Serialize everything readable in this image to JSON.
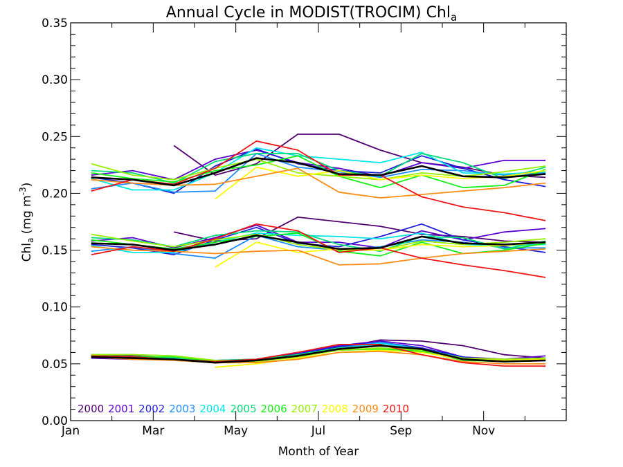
{
  "chart_data": {
    "type": "line",
    "title": "Annual Cycle in MODIST(TROCIM) Chl",
    "title_subscript": "a",
    "xlabel": "Month of Year",
    "ylabel": "Chl",
    "ylabel_subscript": "a",
    "ylabel_unit": " (mg m",
    "ylabel_unit_sup": "-3",
    "ylabel_unit_close": ")",
    "xlim": [
      0,
      12
    ],
    "ylim": [
      0,
      0.35
    ],
    "x_ticks": [
      {
        "value": 0,
        "label": "Jan"
      },
      {
        "value": 2,
        "label": "Mar"
      },
      {
        "value": 4,
        "label": "May"
      },
      {
        "value": 6,
        "label": "Jul"
      },
      {
        "value": 8,
        "label": "Sep"
      },
      {
        "value": 10,
        "label": "Nov"
      }
    ],
    "y_ticks": [
      {
        "value": 0.0,
        "label": "0.00"
      },
      {
        "value": 0.05,
        "label": "0.05"
      },
      {
        "value": 0.1,
        "label": "0.10"
      },
      {
        "value": 0.15,
        "label": "0.15"
      },
      {
        "value": 0.2,
        "label": "0.20"
      },
      {
        "value": 0.25,
        "label": "0.25"
      },
      {
        "value": 0.3,
        "label": "0.30"
      },
      {
        "value": 0.35,
        "label": "0.35"
      }
    ],
    "x_minor_per_major": 2,
    "y_minor_step": 0.01,
    "legend_position": "bottom-left",
    "x": [
      0.5,
      1.5,
      2.5,
      3.5,
      4.5,
      5.5,
      6.5,
      7.5,
      8.5,
      9.5,
      10.5,
      11.5
    ],
    "series": [
      {
        "name": "2000",
        "color": "#500070",
        "legend": true,
        "upper": [
          null,
          null,
          0.242,
          0.216,
          0.226,
          0.252,
          0.252,
          0.238,
          0.227,
          0.223,
          0.216,
          0.214
        ],
        "mean": [
          null,
          null,
          0.166,
          0.158,
          0.16,
          0.179,
          0.175,
          0.171,
          0.164,
          0.162,
          0.158,
          0.157
        ],
        "lower": [
          0.058,
          0.057,
          0.055,
          0.053,
          0.052,
          0.058,
          0.064,
          0.071,
          0.07,
          0.066,
          0.058,
          0.055
        ]
      },
      {
        "name": "2001",
        "color": "#5a00d0",
        "legend": true,
        "upper": [
          0.216,
          0.22,
          0.212,
          0.23,
          0.238,
          0.227,
          0.222,
          0.215,
          0.227,
          0.222,
          0.229,
          0.229
        ],
        "mean": [
          0.158,
          0.161,
          0.152,
          0.161,
          0.172,
          0.157,
          0.157,
          0.152,
          0.167,
          0.159,
          0.166,
          0.169
        ],
        "lower": [
          0.055,
          0.054,
          0.055,
          0.053,
          0.054,
          0.06,
          0.066,
          0.07,
          0.066,
          0.056,
          0.054,
          0.057
        ]
      },
      {
        "name": "2002",
        "color": "#1e1edc",
        "legend": true,
        "upper": [
          0.214,
          0.209,
          0.2,
          0.224,
          0.239,
          0.226,
          0.22,
          0.218,
          0.233,
          0.222,
          0.212,
          0.206
        ],
        "mean": [
          0.155,
          0.152,
          0.146,
          0.159,
          0.17,
          0.156,
          0.153,
          0.162,
          0.173,
          0.159,
          0.153,
          0.148
        ],
        "lower": [
          0.056,
          0.055,
          0.054,
          0.052,
          0.054,
          0.059,
          0.065,
          0.069,
          0.064,
          0.056,
          0.052,
          0.053
        ]
      },
      {
        "name": "2003",
        "color": "#1e8cff",
        "legend": true,
        "upper": [
          0.204,
          0.209,
          0.201,
          0.202,
          0.235,
          0.223,
          0.219,
          0.214,
          0.221,
          0.22,
          0.216,
          0.218
        ],
        "mean": [
          0.149,
          0.153,
          0.147,
          0.143,
          0.163,
          0.153,
          0.15,
          0.153,
          0.159,
          0.157,
          0.152,
          0.152
        ],
        "lower": [
          0.056,
          0.056,
          0.055,
          0.052,
          0.053,
          0.058,
          0.064,
          0.069,
          0.063,
          0.055,
          0.053,
          0.054
        ]
      },
      {
        "name": "2004",
        "color": "#00e6e6",
        "legend": true,
        "upper": [
          0.213,
          0.203,
          0.203,
          0.218,
          0.24,
          0.233,
          0.23,
          0.227,
          0.236,
          0.218,
          0.217,
          0.219
        ],
        "mean": [
          0.154,
          0.148,
          0.148,
          0.157,
          0.165,
          0.163,
          0.162,
          0.16,
          0.165,
          0.155,
          0.154,
          0.155
        ],
        "lower": [
          0.057,
          0.056,
          0.055,
          0.052,
          0.053,
          0.058,
          0.063,
          0.068,
          0.063,
          0.055,
          0.054,
          0.054
        ]
      },
      {
        "name": "2005",
        "color": "#00dc78",
        "legend": true,
        "upper": [
          0.22,
          0.218,
          0.209,
          0.228,
          0.235,
          0.235,
          0.22,
          0.215,
          0.235,
          0.227,
          0.213,
          0.223
        ],
        "mean": [
          0.161,
          0.159,
          0.153,
          0.163,
          0.167,
          0.166,
          0.155,
          0.149,
          0.162,
          0.161,
          0.151,
          0.158
        ],
        "lower": [
          0.058,
          0.058,
          0.057,
          0.053,
          0.054,
          0.058,
          0.064,
          0.066,
          0.062,
          0.055,
          0.053,
          0.055
        ]
      },
      {
        "name": "2006",
        "color": "#14f014",
        "legend": true,
        "upper": [
          0.218,
          0.213,
          0.21,
          0.22,
          0.225,
          0.233,
          0.215,
          0.205,
          0.216,
          0.205,
          0.207,
          0.221
        ],
        "mean": [
          0.159,
          0.155,
          0.151,
          0.157,
          0.162,
          0.165,
          0.149,
          0.145,
          0.157,
          0.147,
          0.15,
          0.156
        ],
        "lower": [
          0.057,
          0.056,
          0.056,
          0.052,
          0.053,
          0.057,
          0.062,
          0.063,
          0.061,
          0.053,
          0.052,
          0.053
        ]
      },
      {
        "name": "2007",
        "color": "#96f000",
        "legend": true,
        "upper": [
          0.226,
          0.216,
          0.212,
          0.222,
          0.23,
          0.218,
          0.215,
          0.212,
          0.218,
          0.215,
          0.219,
          0.224
        ],
        "mean": [
          0.164,
          0.158,
          0.153,
          0.159,
          0.164,
          0.155,
          0.15,
          0.15,
          0.158,
          0.155,
          0.157,
          0.16
        ],
        "lower": [
          0.058,
          0.058,
          0.057,
          0.053,
          0.052,
          0.056,
          0.062,
          0.064,
          0.062,
          0.055,
          0.054,
          0.055
        ]
      },
      {
        "name": "2008",
        "color": "#fafa00",
        "legend": true,
        "upper": [
          null,
          null,
          null,
          0.195,
          0.223,
          0.215,
          0.22,
          0.212,
          0.216,
          0.213,
          0.215,
          0.22
        ],
        "mean": [
          null,
          null,
          null,
          0.135,
          0.157,
          0.148,
          0.151,
          0.15,
          0.155,
          0.153,
          0.154,
          0.157
        ],
        "lower": [
          null,
          null,
          null,
          0.047,
          0.05,
          0.055,
          0.06,
          0.062,
          0.06,
          0.054,
          0.053,
          0.054
        ]
      },
      {
        "name": "2009",
        "color": "#ff8c14",
        "legend": true,
        "upper": [
          0.212,
          0.209,
          0.207,
          0.208,
          0.215,
          0.222,
          0.201,
          0.196,
          0.199,
          0.202,
          0.205,
          0.209
        ],
        "mean": [
          0.153,
          0.15,
          0.149,
          0.147,
          0.149,
          0.15,
          0.137,
          0.138,
          0.143,
          0.147,
          0.149,
          0.151
        ],
        "lower": [
          0.056,
          0.054,
          0.053,
          0.051,
          0.051,
          0.054,
          0.06,
          0.061,
          0.058,
          0.052,
          0.05,
          0.05
        ]
      },
      {
        "name": "2010",
        "color": "#f01414",
        "legend": true,
        "upper": [
          0.202,
          0.212,
          0.208,
          0.222,
          0.246,
          0.238,
          0.216,
          0.216,
          0.197,
          0.188,
          0.183,
          0.176
        ],
        "mean": [
          0.146,
          0.153,
          0.149,
          0.16,
          0.173,
          0.167,
          0.148,
          0.152,
          0.143,
          0.137,
          0.132,
          0.126
        ],
        "lower": [
          0.057,
          0.056,
          0.054,
          0.052,
          0.054,
          0.06,
          0.067,
          0.067,
          0.058,
          0.051,
          0.048,
          0.048
        ]
      },
      {
        "name": "mean",
        "color": "#000000",
        "legend": false,
        "upper": [
          0.214,
          0.212,
          0.207,
          0.218,
          0.231,
          0.227,
          0.217,
          0.216,
          0.224,
          0.215,
          0.214,
          0.217
        ],
        "mean": [
          0.156,
          0.155,
          0.15,
          0.155,
          0.163,
          0.157,
          0.151,
          0.152,
          0.162,
          0.156,
          0.155,
          0.157
        ],
        "lower": [
          0.056,
          0.055,
          0.054,
          0.051,
          0.053,
          0.057,
          0.063,
          0.066,
          0.063,
          0.054,
          0.052,
          0.053
        ]
      }
    ]
  }
}
